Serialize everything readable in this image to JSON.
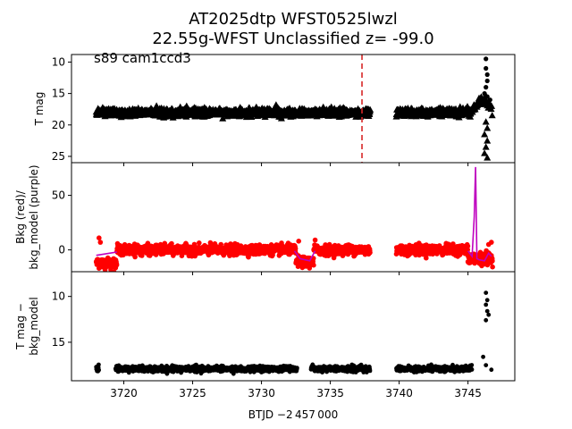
{
  "title": {
    "line1": "AT2025dtp  WFST0525lwzl",
    "line2": "22.55g-WFST Unclassified z= -99.0"
  },
  "xlabel": "BTJD −2 457 000",
  "colors": {
    "points": "#000000",
    "background": "#ff0000",
    "background_model": "#bf00bf",
    "marker_line": "#d62728",
    "axes": "#000000"
  },
  "chart_data": [
    {
      "type": "scatter",
      "panel": "top",
      "ylabel": "T mag",
      "annotation": "s89 cam1ccd3",
      "xlim": [
        3716.2,
        3748.4
      ],
      "ylim": [
        26.0,
        8.8
      ],
      "y_inverted": true,
      "xticks": [
        3720,
        3725,
        3730,
        3735,
        3740,
        3745
      ],
      "yticks": [
        10,
        15,
        20,
        25
      ],
      "marker_x": 3737.3,
      "segments": [
        {
          "x_start": 3718.0,
          "x_end": 3737.9,
          "mag": 18.0,
          "spread": 0.6,
          "marker": "triangle"
        },
        {
          "x_start": 3739.8,
          "x_end": 3745.2,
          "mag": 18.0,
          "spread": 0.6,
          "marker": "triangle"
        }
      ],
      "rise": {
        "x_start": 3745.2,
        "x_end": 3746.8,
        "mag_start": 18.0,
        "mag_peak": 16.0
      },
      "outburst_points": [
        {
          "x": 3746.3,
          "y": 9.5
        },
        {
          "x": 3746.3,
          "y": 11.0
        },
        {
          "x": 3746.4,
          "y": 12.0
        },
        {
          "x": 3746.4,
          "y": 13.0
        },
        {
          "x": 3746.3,
          "y": 14.0
        },
        {
          "x": 3746.2,
          "y": 15.0
        },
        {
          "x": 3746.4,
          "y": 15.5
        },
        {
          "x": 3746.6,
          "y": 16.0
        },
        {
          "x": 3746.3,
          "y": 19.5
        },
        {
          "x": 3746.4,
          "y": 20.5
        },
        {
          "x": 3746.2,
          "y": 21.5
        },
        {
          "x": 3746.4,
          "y": 22.5
        },
        {
          "x": 3746.3,
          "y": 23.5
        },
        {
          "x": 3746.2,
          "y": 24.5
        },
        {
          "x": 3746.4,
          "y": 25.2
        }
      ]
    },
    {
      "type": "line",
      "panel": "middle",
      "ylabel": "Bkg (red)/\nbkg_model (purple)",
      "xlim": [
        3716.2,
        3748.4
      ],
      "ylim": [
        -20,
        80
      ],
      "xticks": [
        3720,
        3725,
        3730,
        3735,
        3740,
        3745
      ],
      "yticks": [
        0,
        50
      ],
      "series": [
        {
          "role": "background",
          "segments": [
            {
              "x_start": 3718.0,
              "x_end": 3719.5,
              "level": -12,
              "spread": 4
            },
            {
              "x_start": 3719.5,
              "x_end": 3732.5,
              "level": 0,
              "spread": 4
            },
            {
              "x_start": 3732.5,
              "x_end": 3733.8,
              "level": -11,
              "spread": 4
            },
            {
              "x_start": 3733.8,
              "x_end": 3737.9,
              "level": 0,
              "spread": 4
            },
            {
              "x_start": 3739.8,
              "x_end": 3745.0,
              "level": 0,
              "spread": 4
            },
            {
              "x_start": 3745.0,
              "x_end": 3746.8,
              "level": -8,
              "spread": 5
            }
          ],
          "extra_points": [
            {
              "x": 3718.2,
              "y": 11
            },
            {
              "x": 3718.3,
              "y": 7
            },
            {
              "x": 3732.7,
              "y": 8
            },
            {
              "x": 3733.9,
              "y": 9
            },
            {
              "x": 3746.5,
              "y": 5
            },
            {
              "x": 3746.7,
              "y": 7
            }
          ]
        },
        {
          "role": "background_model",
          "x": [
            3718.0,
            3719.5,
            3725.0,
            3732.4,
            3732.8,
            3733.5,
            3733.9,
            3737.9,
            3739.8,
            3745.0,
            3745.3,
            3745.45,
            3745.55,
            3745.65,
            3745.8,
            3746.2,
            3746.5,
            3746.7
          ],
          "y": [
            -5,
            -2,
            -1,
            -1,
            -8,
            -10,
            -1,
            -1,
            -1,
            -1,
            -6,
            30,
            76,
            -8,
            -9,
            -10,
            -3,
            -6
          ]
        }
      ]
    },
    {
      "type": "scatter",
      "panel": "bottom",
      "ylabel": "T mag −\nbkg_model",
      "xlim": [
        3716.2,
        3748.4
      ],
      "ylim": [
        19.2,
        7.3
      ],
      "y_inverted": true,
      "xticks": [
        3720,
        3725,
        3730,
        3735,
        3740,
        3745
      ],
      "xtick_labels": [
        "3720",
        "3725",
        "3730",
        "3735",
        "3740",
        "3745"
      ],
      "yticks": [
        10,
        15
      ],
      "segments": [
        {
          "x_start": 3718.0,
          "x_end": 3718.2,
          "mag": 17.9,
          "spread": 0.3
        },
        {
          "x_start": 3719.4,
          "x_end": 3732.6,
          "mag": 17.9,
          "spread": 0.3
        },
        {
          "x_start": 3733.6,
          "x_end": 3737.9,
          "mag": 17.9,
          "spread": 0.3
        },
        {
          "x_start": 3739.8,
          "x_end": 3745.3,
          "mag": 17.9,
          "spread": 0.3
        }
      ],
      "outburst_points": [
        {
          "x": 3746.3,
          "y": 9.6
        },
        {
          "x": 3746.4,
          "y": 10.4
        },
        {
          "x": 3746.3,
          "y": 10.9
        },
        {
          "x": 3746.4,
          "y": 11.6
        },
        {
          "x": 3746.5,
          "y": 12.0
        },
        {
          "x": 3746.3,
          "y": 12.6
        },
        {
          "x": 3746.1,
          "y": 16.6
        },
        {
          "x": 3746.3,
          "y": 17.5
        },
        {
          "x": 3746.7,
          "y": 18.0
        }
      ]
    }
  ]
}
